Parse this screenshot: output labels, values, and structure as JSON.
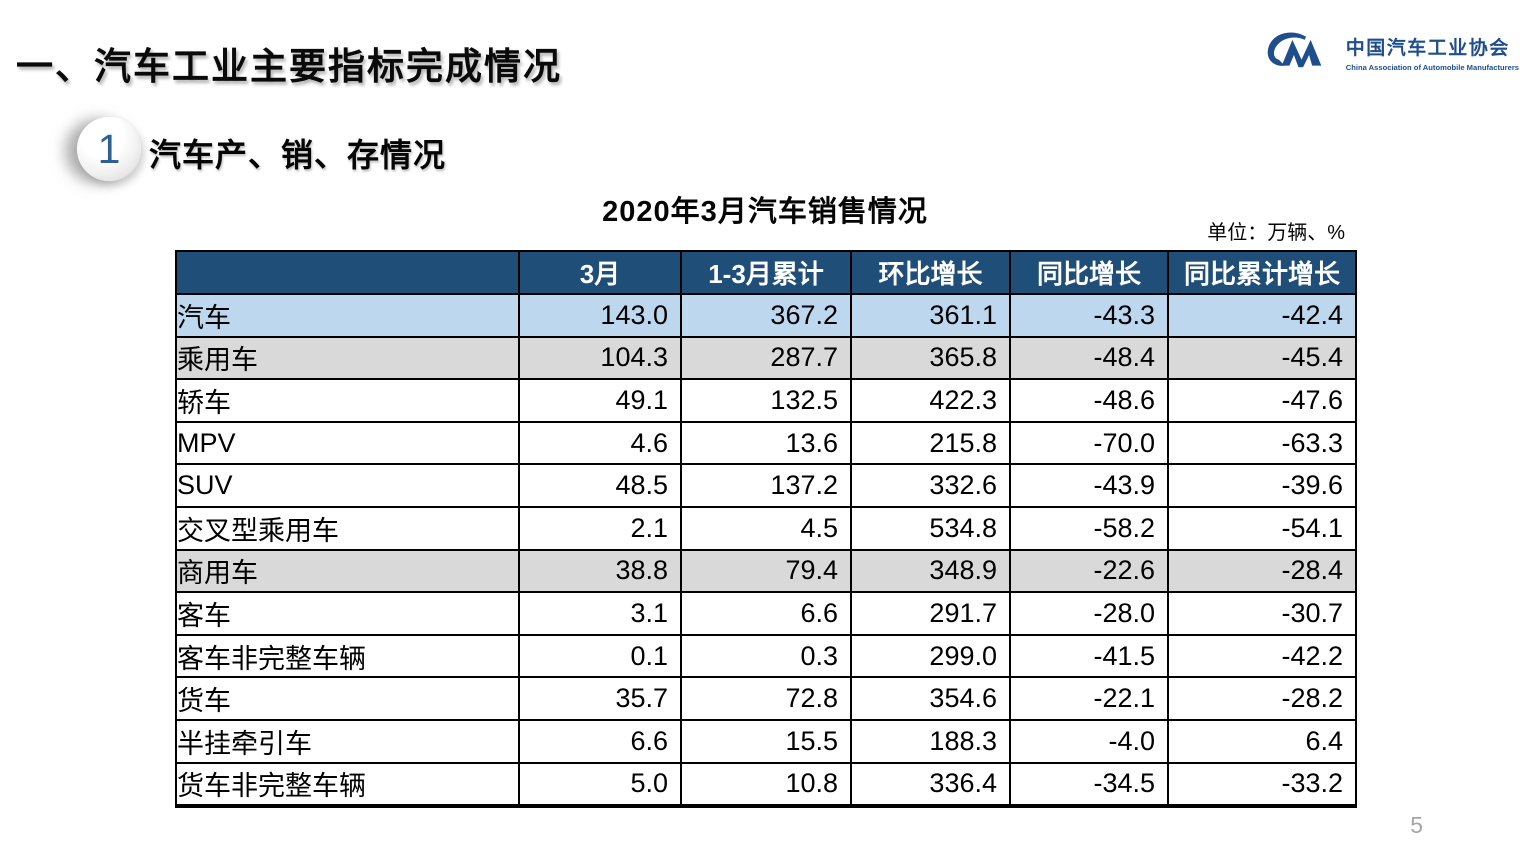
{
  "slide": {
    "main_title": "一、汽车工业主要指标完成情况",
    "section_number": "1",
    "section_title": "汽车产、销、存情况",
    "page_number": "5"
  },
  "logo": {
    "cn_name": "中国汽车工业协会",
    "en_name": "China Association of Automobile Manufacturers"
  },
  "table": {
    "title": "2020年3月汽车销售情况",
    "unit": "单位：万辆、%",
    "columns": [
      "",
      "3月",
      "1-3月累计",
      "环比增长",
      "同比增长",
      "同比累计增长"
    ],
    "rows": [
      {
        "label": "汽车",
        "level": 0,
        "style": "blue",
        "values": [
          "143.0",
          "367.2",
          "361.1",
          "-43.3",
          "-42.4"
        ]
      },
      {
        "label": "乘用车",
        "level": 1,
        "style": "gray",
        "values": [
          "104.3",
          "287.7",
          "365.8",
          "-48.4",
          "-45.4"
        ]
      },
      {
        "label": "轿车",
        "level": 2,
        "style": "white",
        "values": [
          "49.1",
          "132.5",
          "422.3",
          "-48.6",
          "-47.6"
        ]
      },
      {
        "label": "MPV",
        "level": 2,
        "style": "white",
        "values": [
          "4.6",
          "13.6",
          "215.8",
          "-70.0",
          "-63.3"
        ]
      },
      {
        "label": "SUV",
        "level": 2,
        "style": "white",
        "values": [
          "48.5",
          "137.2",
          "332.6",
          "-43.9",
          "-39.6"
        ]
      },
      {
        "label": "交叉型乘用车",
        "level": 2,
        "style": "white",
        "values": [
          "2.1",
          "4.5",
          "534.8",
          "-58.2",
          "-54.1"
        ]
      },
      {
        "label": "商用车",
        "level": 1,
        "style": "gray",
        "values": [
          "38.8",
          "79.4",
          "348.9",
          "-22.6",
          "-28.4"
        ]
      },
      {
        "label": "客车",
        "level": 2,
        "style": "white",
        "values": [
          "3.1",
          "6.6",
          "291.7",
          "-28.0",
          "-30.7"
        ]
      },
      {
        "label": "客车非完整车辆",
        "level": 3,
        "style": "white",
        "values": [
          "0.1",
          "0.3",
          "299.0",
          "-41.5",
          "-42.2"
        ]
      },
      {
        "label": "货车",
        "level": 2,
        "style": "white",
        "values": [
          "35.7",
          "72.8",
          "354.6",
          "-22.1",
          "-28.2"
        ]
      },
      {
        "label": "半挂牵引车",
        "level": 3,
        "style": "white",
        "values": [
          "6.6",
          "15.5",
          "188.3",
          "-4.0",
          "6.4"
        ]
      },
      {
        "label": "货车非完整车辆",
        "level": 3,
        "style": "white",
        "values": [
          "5.0",
          "10.8",
          "336.4",
          "-34.5",
          "-33.2"
        ]
      }
    ],
    "colors": {
      "header_bg": "#1F4E79",
      "header_text": "#FFFFFF",
      "row_blue": "#BDD7EE",
      "row_gray": "#D9D9D9",
      "logo_blue": "#1F4E8C",
      "digit_blue": "#2E6192",
      "page_gray": "#A6A6A6"
    }
  }
}
